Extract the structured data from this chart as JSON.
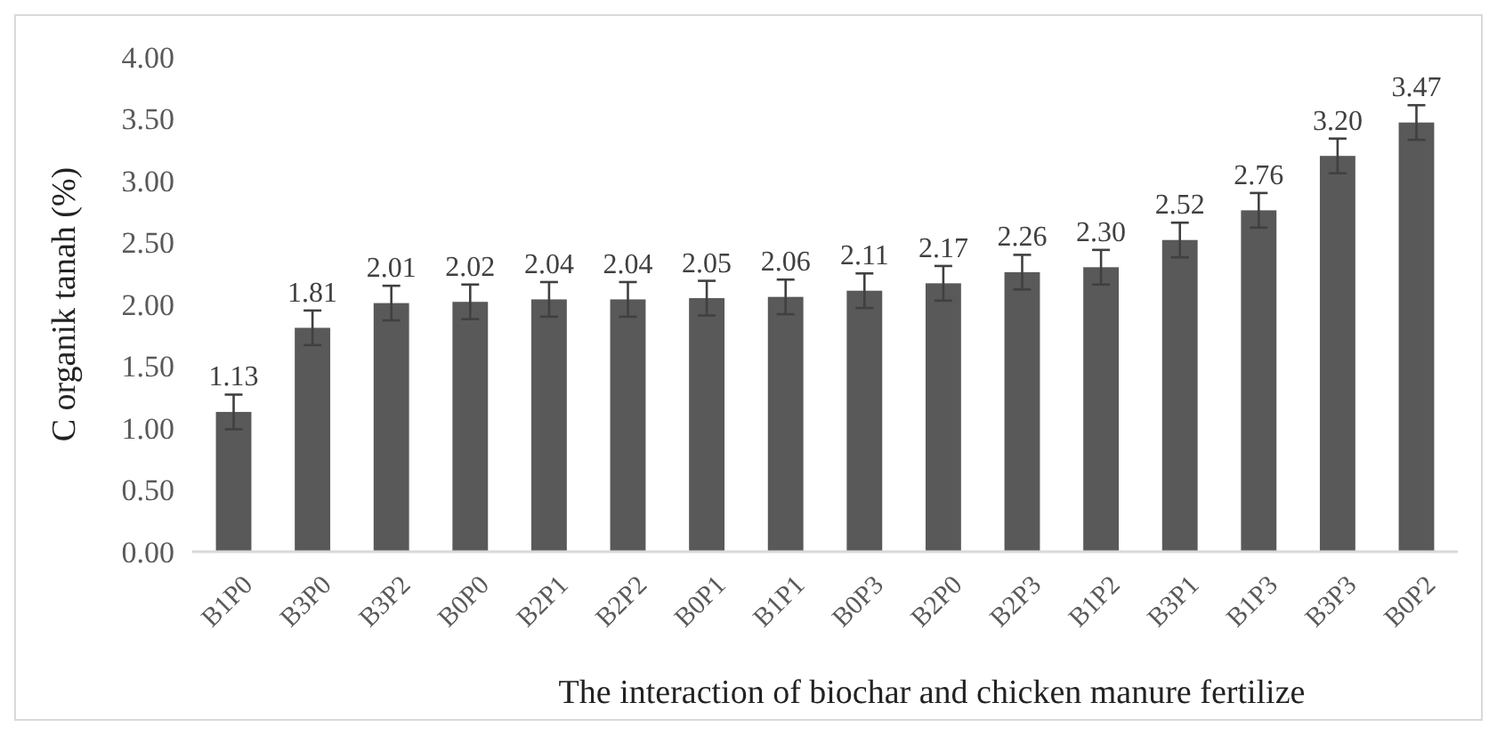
{
  "chart_data": {
    "type": "bar",
    "xlabel": "The interaction of biochar and chicken manure fertilize",
    "ylabel": "C organik tanah (%)",
    "categories": [
      "B1P0",
      "B3P0",
      "B3P2",
      "B0P0",
      "B2P1",
      "B2P2",
      "B0P1",
      "B1P1",
      "B0P3",
      "B2P0",
      "B2P3",
      "B1P2",
      "B3P1",
      "B1P3",
      "B3P3",
      "B0P2"
    ],
    "values": [
      1.13,
      1.81,
      2.01,
      2.02,
      2.04,
      2.04,
      2.05,
      2.06,
      2.11,
      2.17,
      2.26,
      2.3,
      2.52,
      2.76,
      3.2,
      3.47
    ],
    "value_labels": [
      "1.13",
      "1.81",
      "2.01",
      "2.02",
      "2.04",
      "2.04",
      "2.05",
      "2.06",
      "2.11",
      "2.17",
      "2.26",
      "2.30",
      "2.52",
      "2.76",
      "3.20",
      "3.47"
    ],
    "errors": [
      0.14,
      0.14,
      0.14,
      0.14,
      0.14,
      0.14,
      0.14,
      0.14,
      0.14,
      0.14,
      0.14,
      0.14,
      0.14,
      0.14,
      0.14,
      0.14
    ],
    "color": "#595959",
    "ylim": [
      0,
      4
    ],
    "yticks": [
      {
        "value": 0,
        "label": "0.00"
      },
      {
        "value": 0.5,
        "label": "0.50"
      },
      {
        "value": 1,
        "label": "1.00"
      },
      {
        "value": 1.5,
        "label": "1.50"
      },
      {
        "value": 2,
        "label": "2.00"
      },
      {
        "value": 2.5,
        "label": "2.50"
      },
      {
        "value": 3,
        "label": "3.00"
      },
      {
        "value": 3.5,
        "label": "3.50"
      },
      {
        "value": 4,
        "label": "4.00"
      }
    ],
    "grid": false
  }
}
